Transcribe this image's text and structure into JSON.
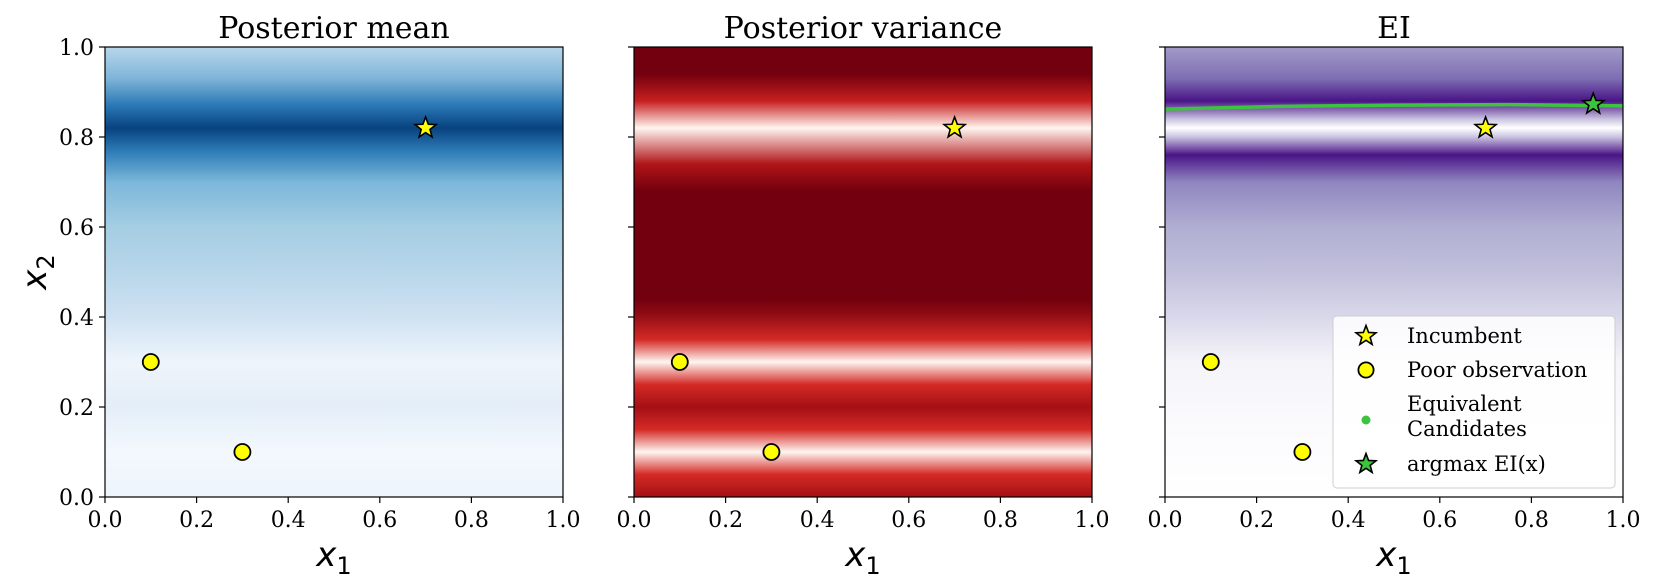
{
  "chart_data": [
    {
      "type": "heatmap",
      "title": "Posterior mean",
      "xlabel": "x",
      "xlabel_sub": "1",
      "ylabel": "x",
      "ylabel_sub": "2",
      "xlim": [
        0.0,
        1.0
      ],
      "ylim": [
        0.0,
        1.0
      ],
      "x_ticks": [
        "0.0",
        "0.2",
        "0.4",
        "0.6",
        "0.8",
        "1.0"
      ],
      "y_ticks": [
        "0.0",
        "0.2",
        "0.4",
        "0.6",
        "0.8",
        "1.0"
      ],
      "show_y_tick_labels": true,
      "colormap": "Blues",
      "gradient": [
        {
          "y": 0.0,
          "color": "#eef4fb"
        },
        {
          "y": 0.1,
          "color": "#f3f8fd"
        },
        {
          "y": 0.2,
          "color": "#e4eef8"
        },
        {
          "y": 0.3,
          "color": "#eef4fb"
        },
        {
          "y": 0.4,
          "color": "#cfe2f2"
        },
        {
          "y": 0.5,
          "color": "#b8d6ea"
        },
        {
          "y": 0.6,
          "color": "#a5cde3"
        },
        {
          "y": 0.7,
          "color": "#7cb7da"
        },
        {
          "y": 0.77,
          "color": "#2c7bb6"
        },
        {
          "y": 0.82,
          "color": "#08427f"
        },
        {
          "y": 0.87,
          "color": "#2a78b6"
        },
        {
          "y": 0.93,
          "color": "#7eb5d8"
        },
        {
          "y": 1.0,
          "color": "#b9d6ec"
        }
      ],
      "points": [
        {
          "x": 0.1,
          "y": 0.3,
          "marker": "circle",
          "color": "#ffff00"
        },
        {
          "x": 0.3,
          "y": 0.1,
          "marker": "circle",
          "color": "#ffff00"
        },
        {
          "x": 0.7,
          "y": 0.82,
          "marker": "star",
          "color": "#ffff00"
        }
      ]
    },
    {
      "type": "heatmap",
      "title": "Posterior variance",
      "xlabel": "x",
      "xlabel_sub": "1",
      "xlim": [
        0.0,
        1.0
      ],
      "ylim": [
        0.0,
        1.0
      ],
      "x_ticks": [
        "0.0",
        "0.2",
        "0.4",
        "0.6",
        "0.8",
        "1.0"
      ],
      "y_ticks": [
        "0.0",
        "0.2",
        "0.4",
        "0.6",
        "0.8",
        "1.0"
      ],
      "show_y_tick_labels": false,
      "colormap": "Reds",
      "gradient": [
        {
          "y": 0.0,
          "color": "#a50f15"
        },
        {
          "y": 0.05,
          "color": "#d42a26"
        },
        {
          "y": 0.1,
          "color": "#fff5f0"
        },
        {
          "y": 0.15,
          "color": "#d42a26"
        },
        {
          "y": 0.2,
          "color": "#a50f15"
        },
        {
          "y": 0.25,
          "color": "#d42a26"
        },
        {
          "y": 0.3,
          "color": "#fff5f0"
        },
        {
          "y": 0.35,
          "color": "#d42a26"
        },
        {
          "y": 0.41,
          "color": "#8b0a13"
        },
        {
          "y": 0.44,
          "color": "#73000e"
        },
        {
          "y": 0.68,
          "color": "#73000e"
        },
        {
          "y": 0.74,
          "color": "#b01518"
        },
        {
          "y": 0.82,
          "color": "#fff5f0"
        },
        {
          "y": 0.88,
          "color": "#c7201f"
        },
        {
          "y": 0.94,
          "color": "#73000e"
        },
        {
          "y": 1.0,
          "color": "#73000e"
        }
      ],
      "points": [
        {
          "x": 0.1,
          "y": 0.3,
          "marker": "circle",
          "color": "#ffff00"
        },
        {
          "x": 0.3,
          "y": 0.1,
          "marker": "circle",
          "color": "#ffff00"
        },
        {
          "x": 0.7,
          "y": 0.82,
          "marker": "star",
          "color": "#ffff00"
        }
      ]
    },
    {
      "type": "heatmap",
      "title": "EI",
      "xlabel": "x",
      "xlabel_sub": "1",
      "xlim": [
        0.0,
        1.0
      ],
      "ylim": [
        0.0,
        1.0
      ],
      "x_ticks": [
        "0.0",
        "0.2",
        "0.4",
        "0.6",
        "0.8",
        "1.0"
      ],
      "y_ticks": [
        "0.0",
        "0.2",
        "0.4",
        "0.6",
        "0.8",
        "1.0"
      ],
      "show_y_tick_labels": false,
      "colormap": "Purples",
      "gradient": [
        {
          "y": 0.0,
          "color": "#ffffff"
        },
        {
          "y": 0.15,
          "color": "#fbfafd"
        },
        {
          "y": 0.3,
          "color": "#f5f4f9"
        },
        {
          "y": 0.4,
          "color": "#d9d8ea"
        },
        {
          "y": 0.5,
          "color": "#c1c0dc"
        },
        {
          "y": 0.6,
          "color": "#b0aed2"
        },
        {
          "y": 0.7,
          "color": "#8f86c0"
        },
        {
          "y": 0.76,
          "color": "#4a1486"
        },
        {
          "y": 0.8,
          "color": "#c9c3e0"
        },
        {
          "y": 0.82,
          "color": "#ffffff"
        },
        {
          "y": 0.84,
          "color": "#c9c3e0"
        },
        {
          "y": 0.88,
          "color": "#4a1486"
        },
        {
          "y": 0.93,
          "color": "#7d6fb3"
        },
        {
          "y": 1.0,
          "color": "#a39bc9"
        }
      ],
      "line": {
        "name": "Equivalent Candidates",
        "color": "#3cc43c",
        "x": [
          0.0,
          0.25,
          0.5,
          0.75,
          1.0
        ],
        "y": [
          0.862,
          0.868,
          0.871,
          0.872,
          0.869
        ]
      },
      "points": [
        {
          "x": 0.1,
          "y": 0.3,
          "marker": "circle",
          "color": "#ffff00"
        },
        {
          "x": 0.3,
          "y": 0.1,
          "marker": "circle",
          "color": "#ffff00"
        },
        {
          "x": 0.7,
          "y": 0.82,
          "marker": "star",
          "color": "#ffff00"
        },
        {
          "x": 0.935,
          "y": 0.873,
          "marker": "star",
          "color": "#3cc43c"
        }
      ],
      "legend": {
        "placement": "lower-right",
        "entries": [
          {
            "marker": "star",
            "color": "#ffff00",
            "lines": [
              "Incumbent"
            ]
          },
          {
            "marker": "circle",
            "color": "#ffff00",
            "lines": [
              "Poor observation"
            ]
          },
          {
            "marker": "dot",
            "color": "#3cc43c",
            "lines": [
              "Equivalent",
              "Candidates"
            ]
          },
          {
            "marker": "star",
            "color": "#3cc43c",
            "lines": [
              "argmax EI(x)"
            ]
          }
        ]
      }
    }
  ]
}
